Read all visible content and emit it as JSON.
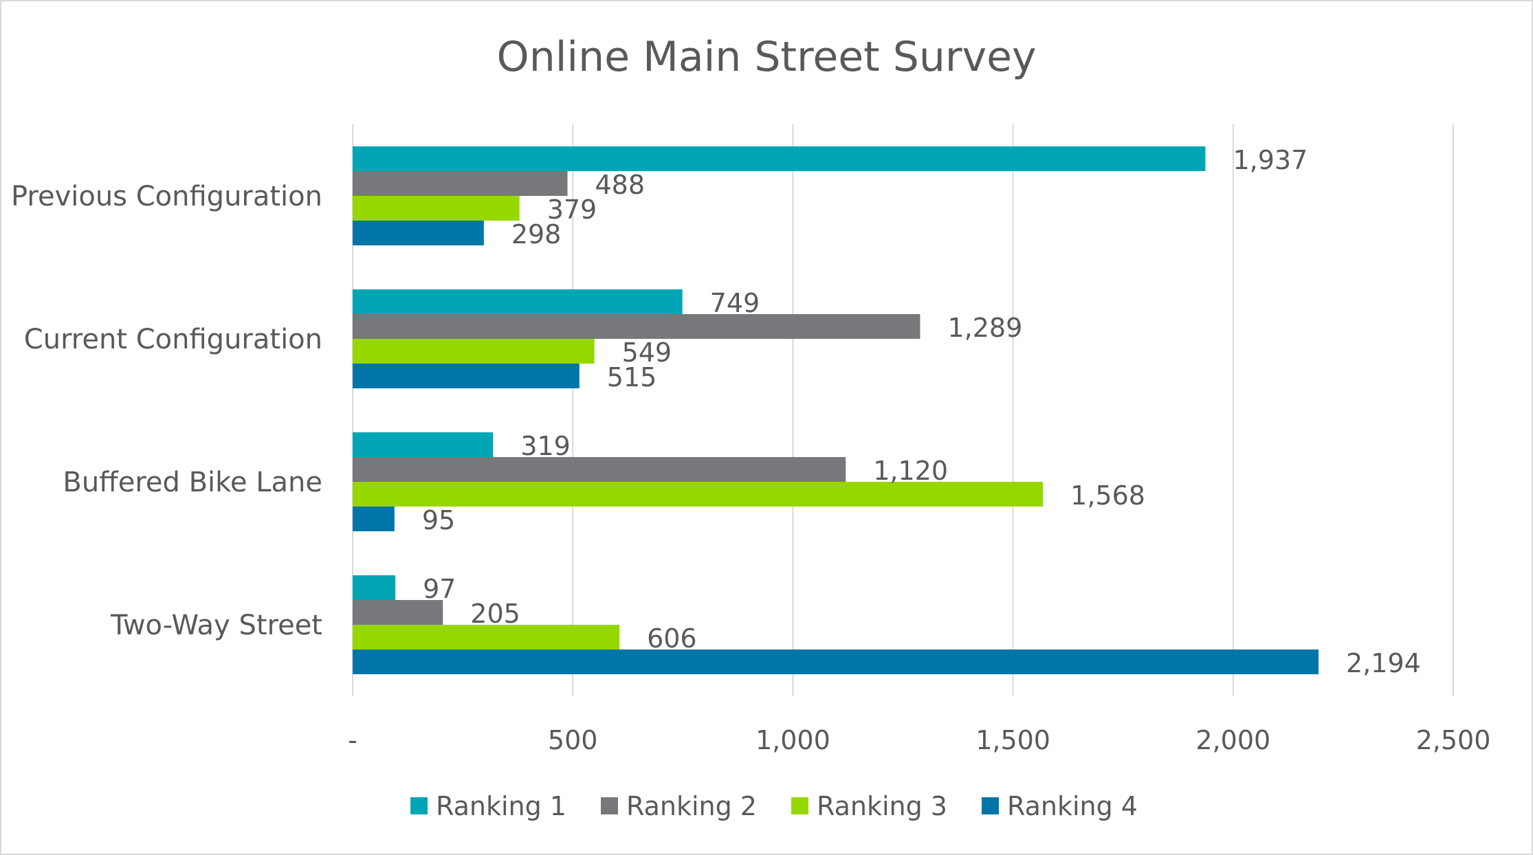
{
  "chart_data": {
    "type": "bar",
    "orientation": "horizontal",
    "title": "Online Main Street Survey",
    "categories": [
      "Previous Configuration",
      "Current Configuration",
      "Buffered Bike Lane",
      "Two-Way Street"
    ],
    "series": [
      {
        "name": "Ranking 1",
        "color": "#00A6B4",
        "values": [
          1937,
          749,
          319,
          97
        ],
        "labels": [
          "1,937",
          "749",
          "319",
          "97"
        ]
      },
      {
        "name": "Ranking 2",
        "color": "#76787B",
        "values": [
          488,
          1289,
          1120,
          205
        ],
        "labels": [
          "488",
          "1,289",
          "1,120",
          "205"
        ]
      },
      {
        "name": "Ranking 3",
        "color": "#96D700",
        "values": [
          379,
          549,
          1568,
          606
        ],
        "labels": [
          "379",
          "549",
          "1,568",
          "606"
        ]
      },
      {
        "name": "Ranking 4",
        "color": "#0075A8",
        "values": [
          298,
          515,
          95,
          2194
        ],
        "labels": [
          "298",
          "515",
          "95",
          "2,194"
        ]
      }
    ],
    "xlim": [
      0,
      2500
    ],
    "xticks": [
      0,
      500,
      1000,
      1500,
      2000,
      2500
    ],
    "xtick_labels": [
      "-",
      "500",
      "1,000",
      "1,500",
      "2,000",
      "2,500"
    ],
    "grid": "vertical",
    "legend": "bottom",
    "text_color": "#595959",
    "grid_color": "#D9D9D9"
  }
}
